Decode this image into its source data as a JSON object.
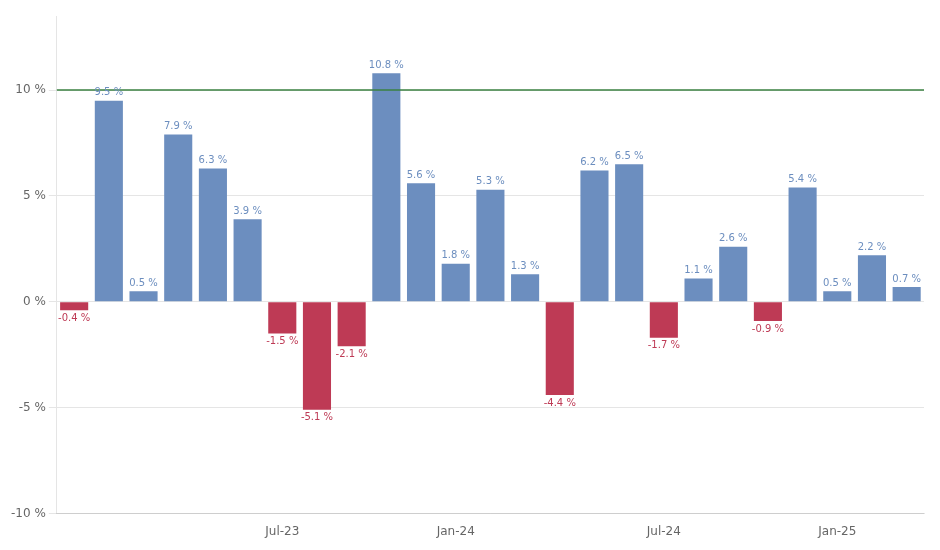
{
  "chart_data": {
    "type": "bar",
    "categories": [
      null,
      null,
      null,
      null,
      null,
      null,
      "Jul-23",
      null,
      null,
      null,
      null,
      "Jan-24",
      null,
      null,
      null,
      null,
      null,
      "Jul-24",
      null,
      null,
      null,
      null,
      "Jan-25",
      null,
      null
    ],
    "values": [
      -0.4,
      9.5,
      0.5,
      7.9,
      6.3,
      3.9,
      -1.5,
      -5.1,
      -2.1,
      10.8,
      5.6,
      1.8,
      5.3,
      1.3,
      -4.4,
      6.2,
      6.5,
      -1.7,
      1.1,
      2.6,
      -0.9,
      5.4,
      0.5,
      2.2,
      0.7
    ],
    "value_labels": [
      "-0.4 %",
      "9.5 %",
      "0.5 %",
      "7.9 %",
      "6.3 %",
      "3.9 %",
      "-1.5 %",
      "-5.1 %",
      "-2.1 %",
      "10.8 %",
      "5.6 %",
      "1.8 %",
      "5.3 %",
      "1.3 %",
      "-4.4 %",
      "6.2 %",
      "6.5 %",
      "-1.7 %",
      "1.1 %",
      "2.6 %",
      "-0.9 %",
      "5.4 %",
      "0.5 %",
      "2.2 %",
      "0.7 %"
    ],
    "colors": [
      "#BE3A55",
      "#6C8EBF",
      "#6C8EBF",
      "#6C8EBF",
      "#6C8EBF",
      "#6C8EBF",
      "#BE3A55",
      "#BE3A55",
      "#BE3A55",
      "#6C8EBF",
      "#6C8EBF",
      "#6C8EBF",
      "#6C8EBF",
      "#6C8EBF",
      "#BE3A55",
      "#6C8EBF",
      "#6C8EBF",
      "#BE3A55",
      "#6C8EBF",
      "#6C8EBF",
      "#BE3A55",
      "#6C8EBF",
      "#6C8EBF",
      "#6C8EBF",
      "#6C8EBF"
    ],
    "data_labels": true,
    "reference_line": {
      "value": 10,
      "color": "#3A8040"
    },
    "ylim": [
      -10,
      13.5
    ],
    "yticks": [
      {
        "value": -10,
        "label": "-10 %"
      },
      {
        "value": -5,
        "label": "-5 %"
      },
      {
        "value": 0,
        "label": "0 %"
      },
      {
        "value": 5,
        "label": "5 %"
      },
      {
        "value": 10,
        "label": "10 %"
      }
    ],
    "grid": true
  }
}
